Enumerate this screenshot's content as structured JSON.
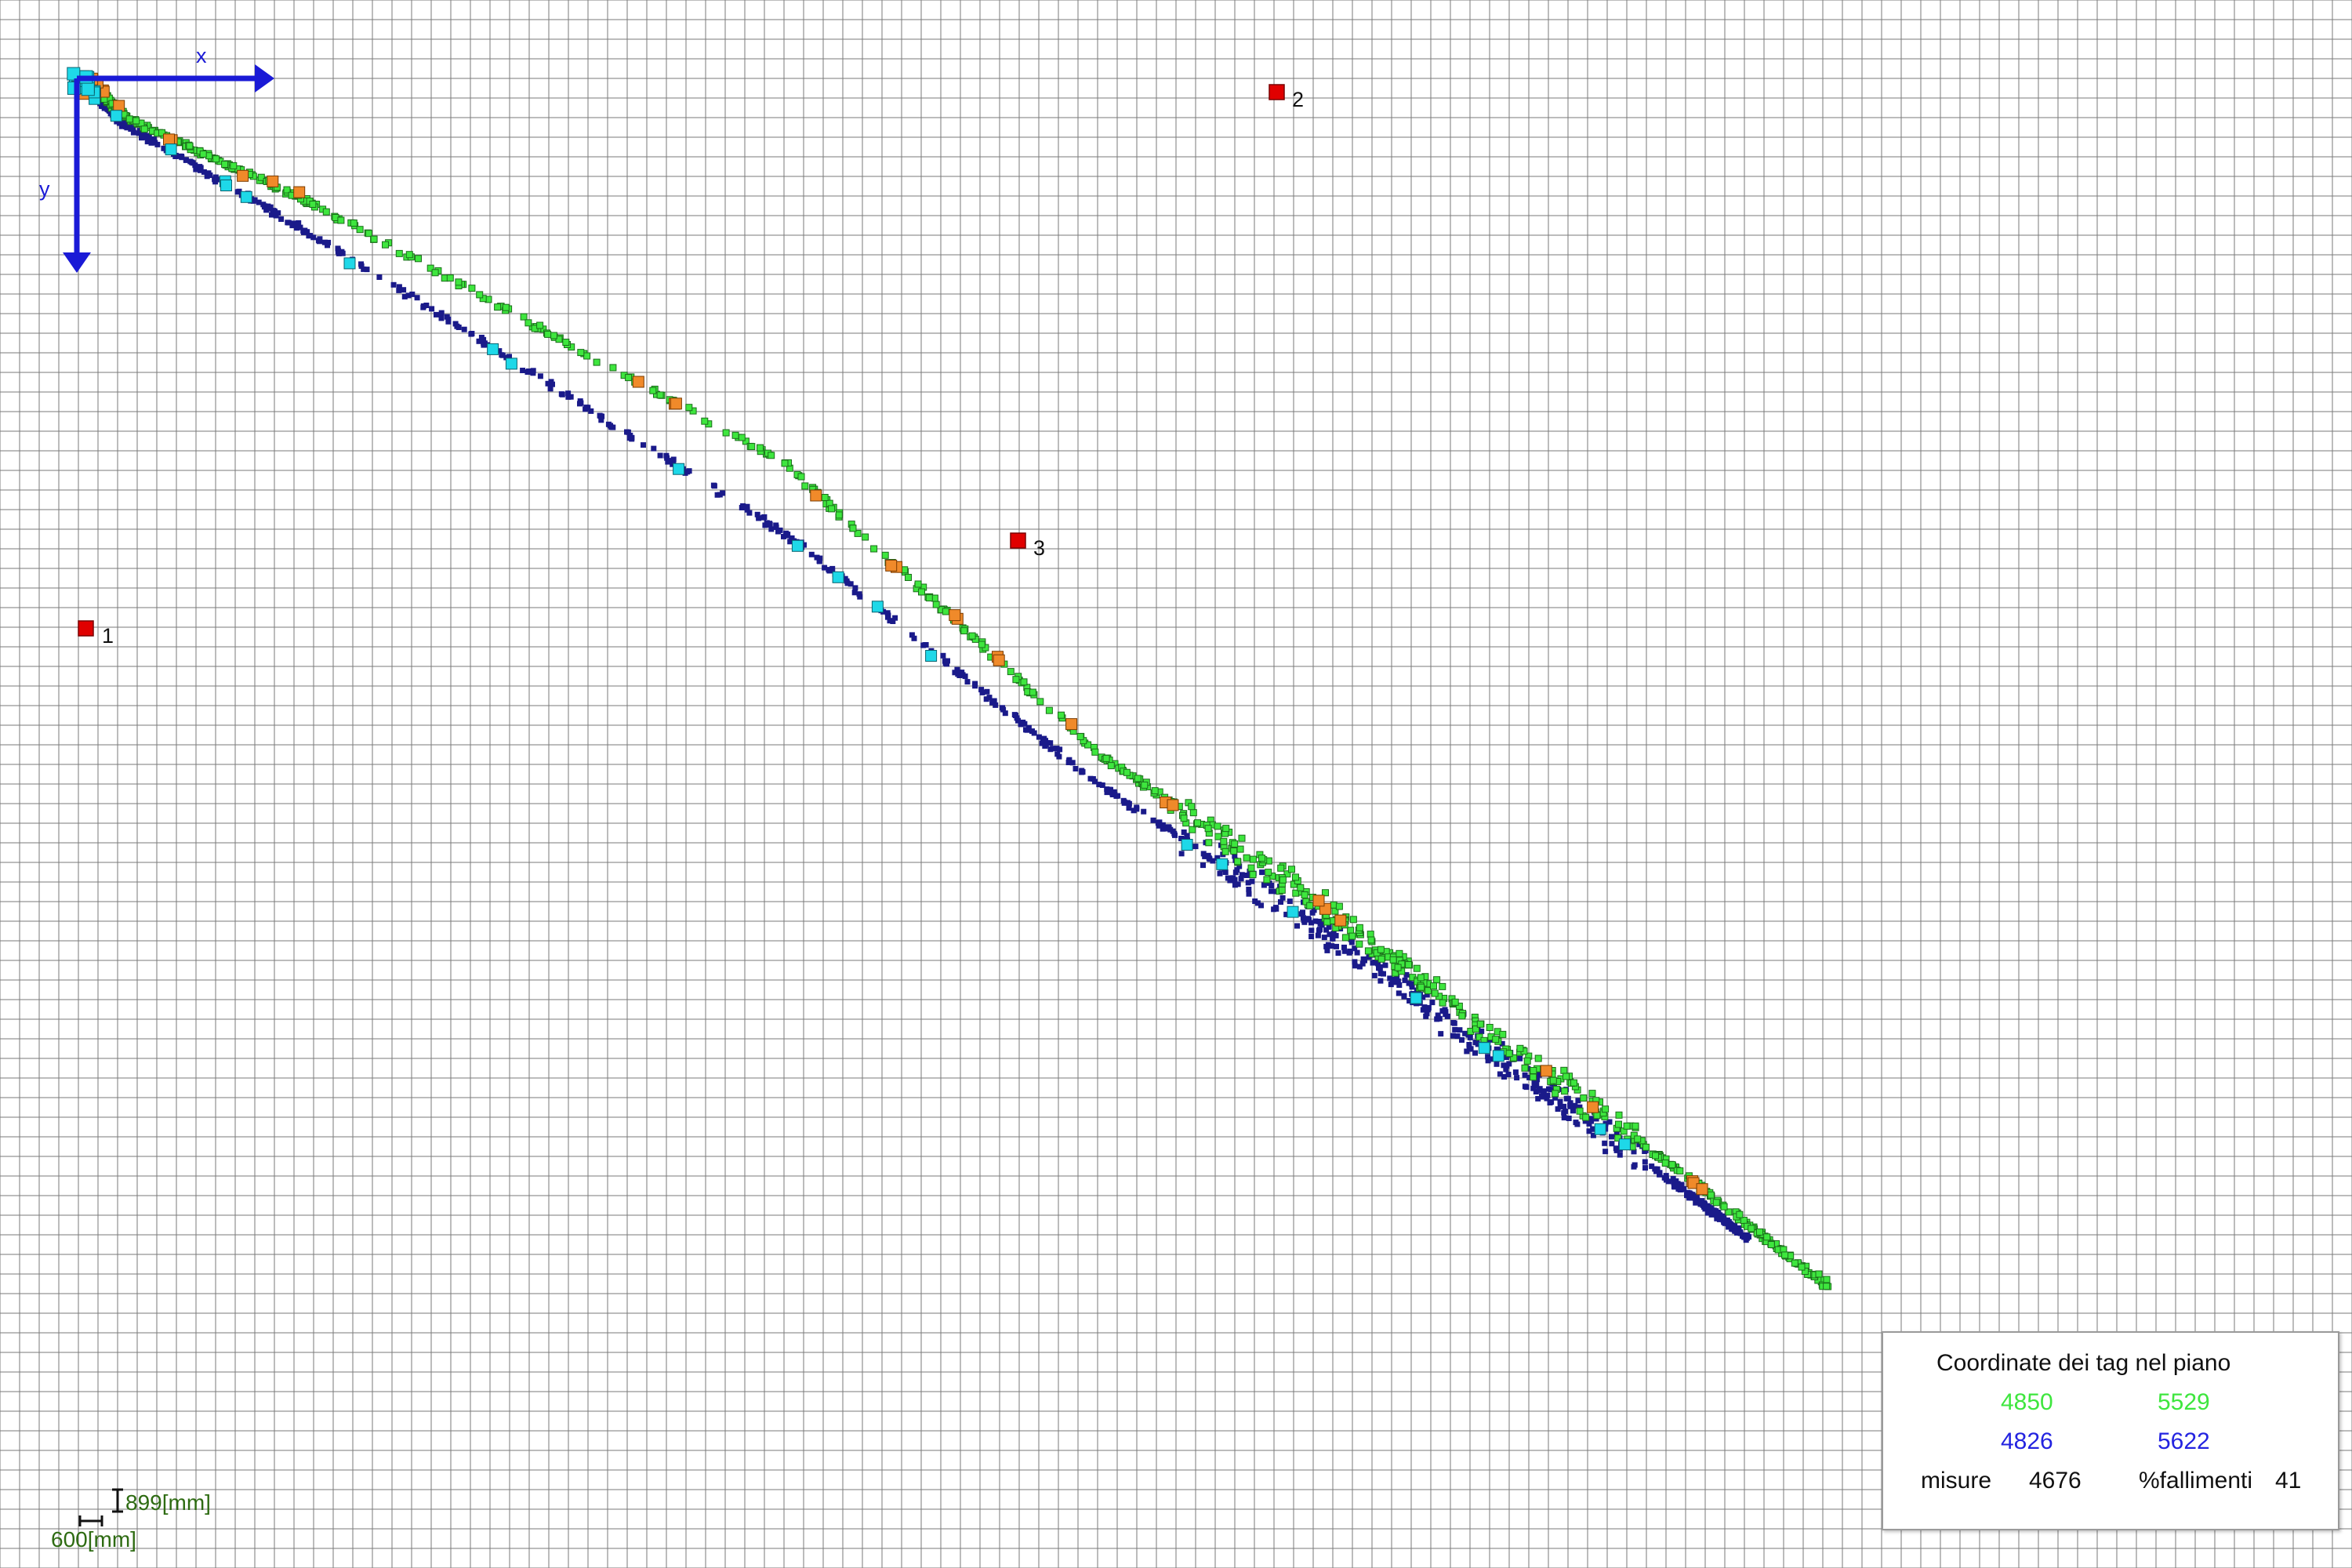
{
  "anchors": [
    {
      "id": "anchor-1",
      "label": "1"
    },
    {
      "id": "anchor-2",
      "label": "2"
    },
    {
      "id": "anchor-3",
      "label": "3"
    }
  ],
  "axes": {
    "x_label": "x",
    "y_label": "y",
    "color": "#1a1ad6"
  },
  "scale": {
    "y_scale_label": "899[mm]",
    "x_scale_label": "600[mm]"
  },
  "legend": {
    "title": "Coordinate dei tag nel piano",
    "row1": {
      "left": "4850",
      "right": "5529",
      "color": "#3ee63e"
    },
    "row2": {
      "left": "4826",
      "right": "5622",
      "color": "#2323e0"
    },
    "row3": {
      "misure_label": "misure",
      "misure_value": "4676",
      "fail_label": "%fallimenti",
      "fail_value": "41"
    }
  },
  "colors": {
    "grid": "#7a7a7a",
    "anchor": "#e00000",
    "series_green": "#3ee63e",
    "series_navy": "#1a1a8a",
    "series_orange": "#f08a2a",
    "series_cyan": "#1ed8e8"
  }
}
